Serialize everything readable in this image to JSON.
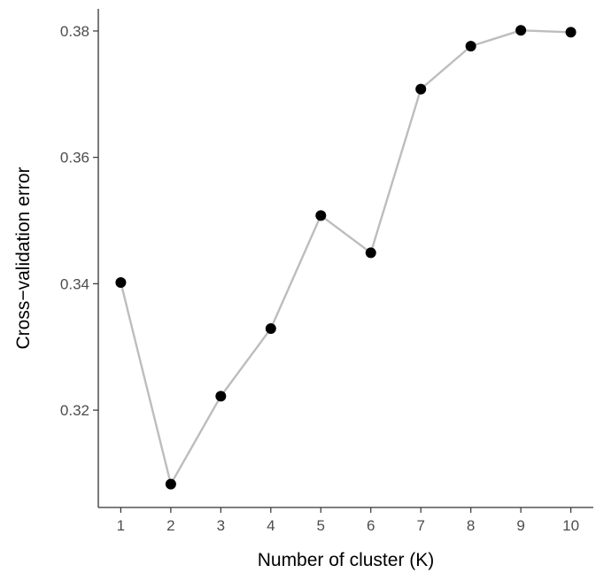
{
  "chart_data": {
    "type": "line",
    "title": "",
    "xlabel": "Number of cluster (K)",
    "ylabel": "Cross−validation error",
    "x": [
      1,
      2,
      3,
      4,
      5,
      6,
      7,
      8,
      9,
      10
    ],
    "series": [
      {
        "values": [
          0.3402,
          0.3083,
          0.3222,
          0.3329,
          0.3508,
          0.3449,
          0.3708,
          0.3776,
          0.3801,
          0.3798
        ]
      }
    ],
    "x_ticks": [
      "1",
      "2",
      "3",
      "4",
      "5",
      "6",
      "7",
      "8",
      "9",
      "10"
    ],
    "y_ticks": [
      "0.32",
      "0.34",
      "0.36",
      "0.38"
    ],
    "xlim": [
      0.55,
      10.45
    ],
    "ylim": [
      0.3046,
      0.3835
    ],
    "grid": false,
    "legend": "none",
    "colors": {
      "line": "#bdbdbd",
      "point": "#000000",
      "axis": "#333333",
      "tick_text": "#4d4d4d"
    }
  }
}
